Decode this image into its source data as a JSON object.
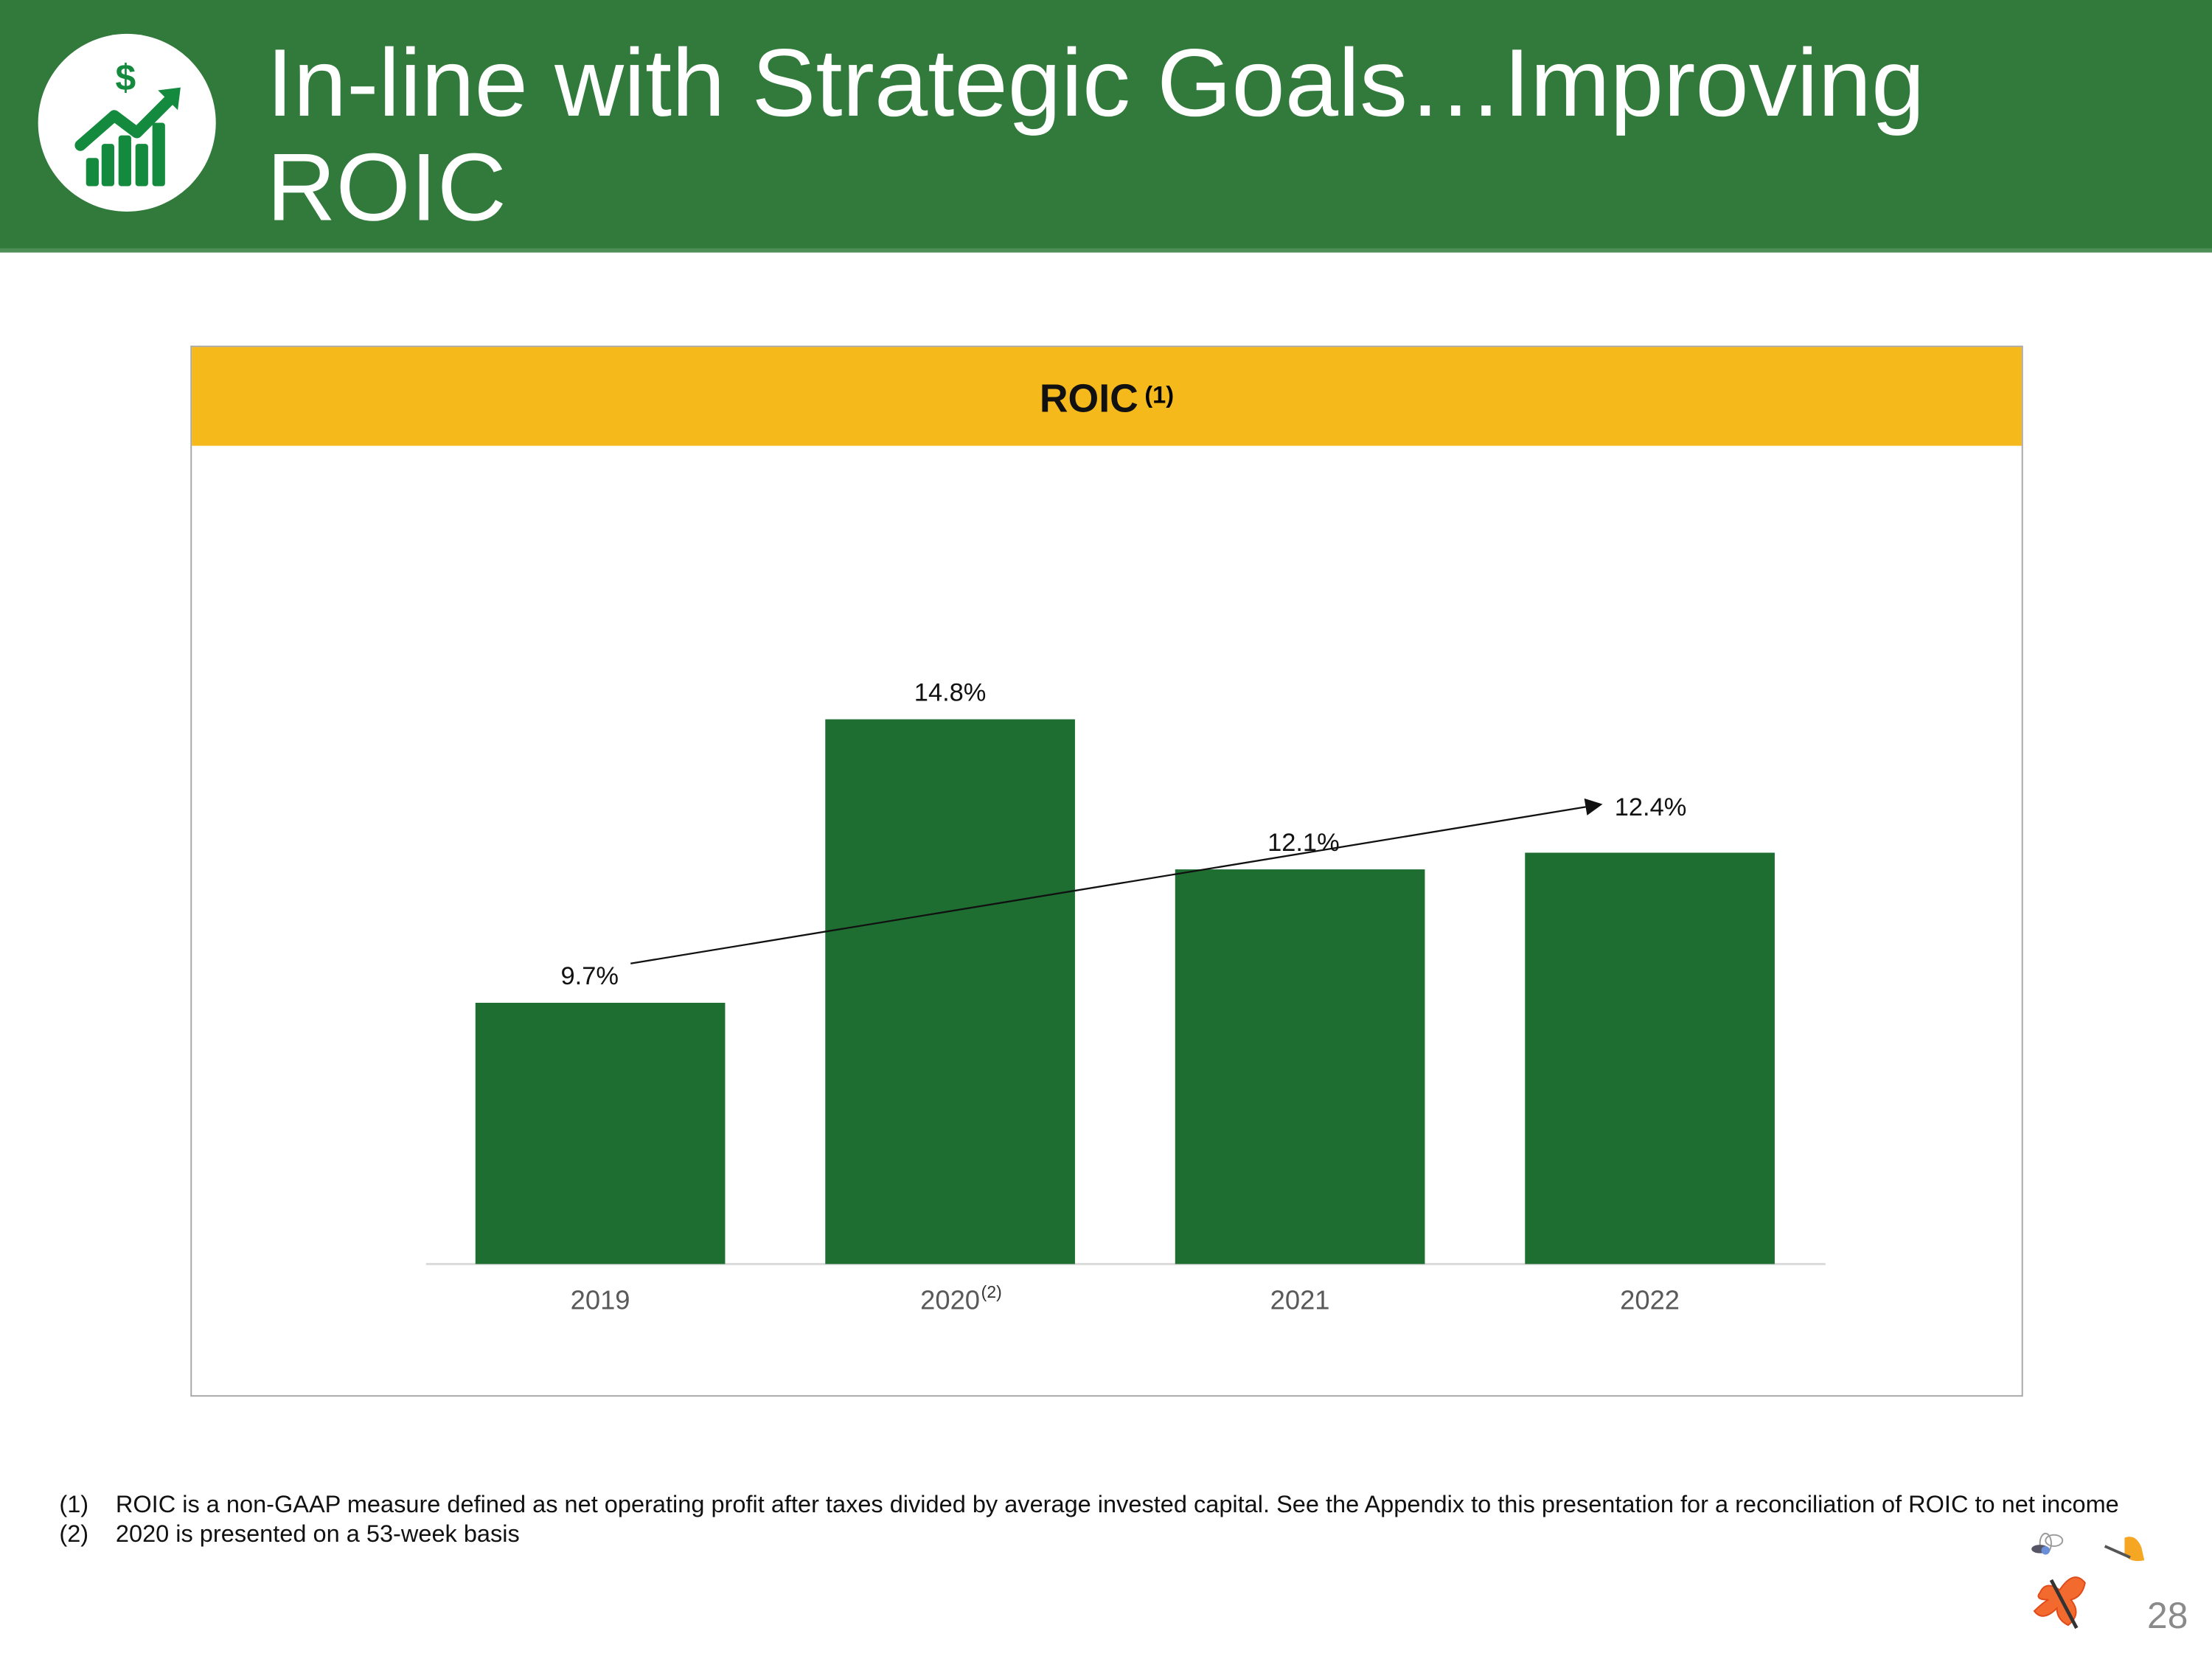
{
  "header": {
    "title": "In-line with Strategic Goals…Improving ROIC",
    "icon": "growth-chart-dollar-icon",
    "background": "#317a3c"
  },
  "chart_data": {
    "type": "bar",
    "title": "ROIC",
    "title_footnote": "(1)",
    "categories": [
      "2019",
      "2020",
      "2021",
      "2022"
    ],
    "category_footnotes": [
      "",
      "(2)",
      "",
      ""
    ],
    "values": [
      9.7,
      14.8,
      12.1,
      12.4
    ],
    "data_labels": [
      "9.7%",
      "14.8%",
      "12.1%",
      "12.4%"
    ],
    "unit": "%",
    "ylim": [
      5,
      16
    ],
    "grid": false,
    "bar_color": "#1e6e32",
    "header_color": "#f5b91b",
    "trend_arrow": {
      "from": "2019",
      "to": "2022"
    }
  },
  "footnotes": [
    {
      "num": "(1)",
      "text": "ROIC is a non-GAAP measure defined as net operating profit after taxes divided by average invested capital. See the Appendix to this presentation for a reconciliation of ROIC to net income"
    },
    {
      "num": "(2)",
      "text": "2020 is presented on a 53-week basis"
    }
  ],
  "page_number": "28",
  "decorations": [
    "butterfly-icon",
    "fly-icon",
    "yellow-butterfly-icon"
  ]
}
